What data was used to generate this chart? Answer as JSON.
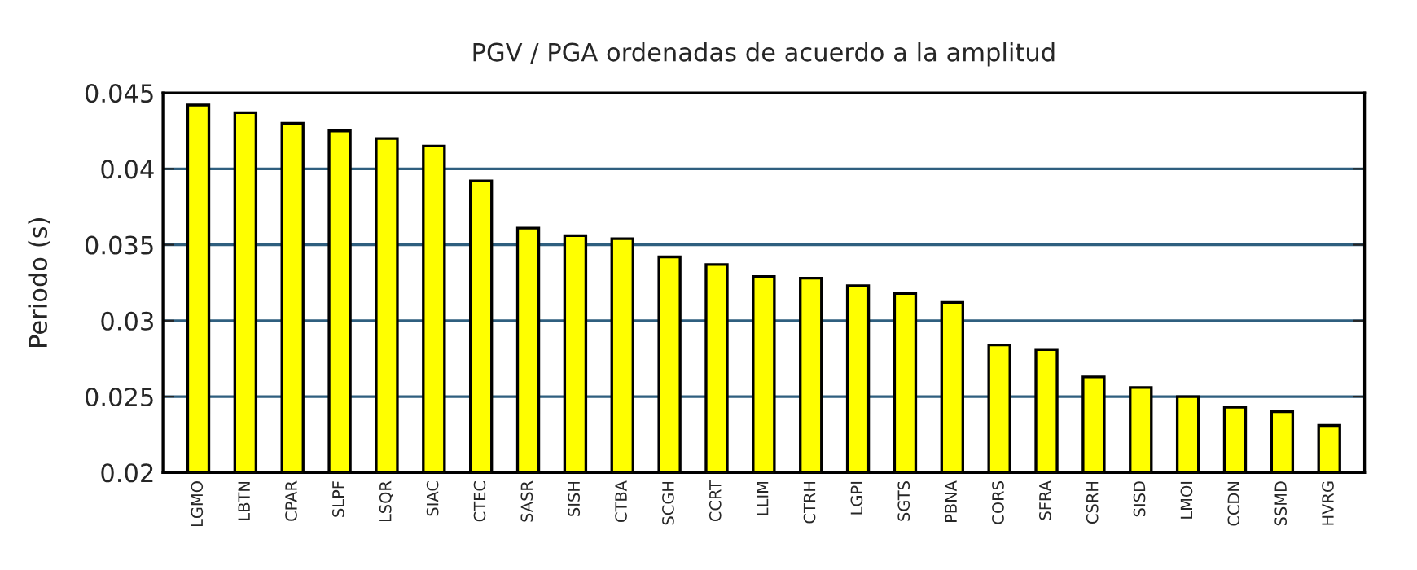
{
  "chart_data": {
    "type": "bar",
    "title": "PGV / PGA ordenadas de acuerdo a la amplitud",
    "ylabel": "Periodo (s)",
    "categories": [
      "LGMO",
      "LBTN",
      "CPAR",
      "SLPF",
      "LSQR",
      "SIAC",
      "CTEC",
      "SASR",
      "SISH",
      "CTBA",
      "SCGH",
      "CCRT",
      "LLIM",
      "CTRH",
      "LGPI",
      "SGTS",
      "PBNA",
      "CORS",
      "SFRA",
      "CSRH",
      "SISD",
      "LMOI",
      "CCDN",
      "SSMD",
      "HVRG"
    ],
    "values": [
      0.0442,
      0.0437,
      0.043,
      0.0425,
      0.042,
      0.0415,
      0.0392,
      0.0361,
      0.0356,
      0.0354,
      0.0342,
      0.0337,
      0.0329,
      0.0328,
      0.0323,
      0.0318,
      0.0312,
      0.0284,
      0.0281,
      0.0263,
      0.0256,
      0.025,
      0.0243,
      0.024,
      0.0231
    ],
    "color": "#ffff00",
    "ylim": [
      0.02,
      0.045
    ],
    "yticks": [
      0.02,
      0.025,
      0.03,
      0.035,
      0.04,
      0.045
    ],
    "grid": "y"
  }
}
